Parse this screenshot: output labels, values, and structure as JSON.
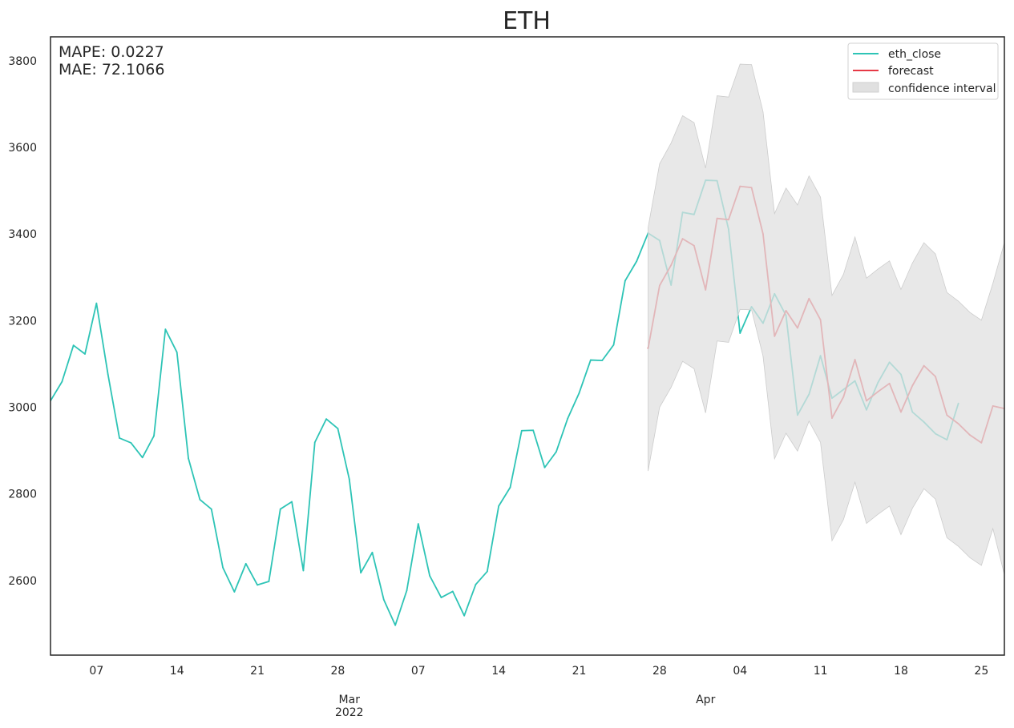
{
  "chart_data": {
    "type": "line",
    "title": "ETH",
    "xlabel": "",
    "ylabel": "",
    "ylim": [
      2428,
      3855
    ],
    "xlim": [
      "2022-02-03",
      "2022-04-27"
    ],
    "grid": false,
    "legend_position": "top-right",
    "annotations": {
      "mape": "MAPE: 0.0227",
      "mae": "MAE: 72.1066"
    },
    "x_ticks": [
      {
        "date": "2022-02-07",
        "label": "07"
      },
      {
        "date": "2022-02-14",
        "label": "14"
      },
      {
        "date": "2022-02-21",
        "label": "21"
      },
      {
        "date": "2022-02-28",
        "label": "28"
      },
      {
        "date": "2022-03-07",
        "label": "07"
      },
      {
        "date": "2022-03-14",
        "label": "14"
      },
      {
        "date": "2022-03-21",
        "label": "21"
      },
      {
        "date": "2022-03-28",
        "label": "28"
      },
      {
        "date": "2022-04-04",
        "label": "04"
      },
      {
        "date": "2022-04-11",
        "label": "11"
      },
      {
        "date": "2022-04-18",
        "label": "18"
      },
      {
        "date": "2022-04-25",
        "label": "25"
      }
    ],
    "x_major_labels": [
      {
        "date": "2022-03-01",
        "lines": [
          "Mar",
          "2022"
        ]
      },
      {
        "date": "2022-04-01",
        "lines": [
          "Apr"
        ]
      }
    ],
    "y_ticks": [
      2600,
      2800,
      3000,
      3200,
      3400,
      3600,
      3800
    ],
    "series": [
      {
        "name": "eth_close",
        "color": "#2ec4b6",
        "start": "2022-02-03",
        "values": [
          3015,
          3059,
          3143,
          3123,
          3240,
          3076,
          2929,
          2918,
          2884,
          2934,
          3180,
          3127,
          2882,
          2787,
          2765,
          2630,
          2574,
          2639,
          2590,
          2598,
          2765,
          2782,
          2623,
          2919,
          2973,
          2951,
          2834,
          2618,
          2665,
          2556,
          2497,
          2577,
          2731,
          2611,
          2561,
          2575,
          2519,
          2591,
          2621,
          2772,
          2815,
          2946,
          2947,
          2861,
          2897,
          2974,
          3033,
          3109,
          3108,
          3144,
          3292,
          3337,
          3402,
          3385,
          3282,
          3450,
          3445,
          3524,
          3523,
          3411,
          3171,
          3232,
          3194,
          3262,
          3212,
          2982,
          3030,
          3119,
          3021,
          3041,
          3061,
          2994,
          3057,
          3104,
          3076,
          2989,
          2966,
          2939,
          2925,
          3009
        ]
      },
      {
        "name": "forecast",
        "color": "#e63946",
        "start": "2022-03-27",
        "values": [
          3136,
          3281,
          3328,
          3389,
          3373,
          3271,
          3436,
          3433,
          3510,
          3507,
          3400,
          3164,
          3223,
          3183,
          3251,
          3202,
          2975,
          3024,
          3110,
          3015,
          3036,
          3055,
          2989,
          3050,
          3096,
          3071,
          2982,
          2962,
          2936,
          2918,
          3003,
          2997
        ]
      },
      {
        "name": "confidence interval",
        "color": "#e0e0e0",
        "start": "2022-03-27",
        "upper": [
          3415,
          3562,
          3610,
          3673,
          3657,
          3552,
          3719,
          3716,
          3792,
          3791,
          3682,
          3447,
          3506,
          3467,
          3534,
          3485,
          3258,
          3307,
          3393,
          3298,
          3319,
          3338,
          3272,
          3333,
          3380,
          3354,
          3265,
          3245,
          3219,
          3201,
          3286,
          3380
        ],
        "lower": [
          2853,
          3000,
          3046,
          3106,
          3089,
          2987,
          3153,
          3150,
          3226,
          3225,
          3118,
          2881,
          2940,
          2899,
          2968,
          2919,
          2692,
          2741,
          2827,
          2732,
          2753,
          2772,
          2706,
          2767,
          2812,
          2788,
          2699,
          2679,
          2653,
          2635,
          2720,
          2614
        ]
      }
    ]
  }
}
